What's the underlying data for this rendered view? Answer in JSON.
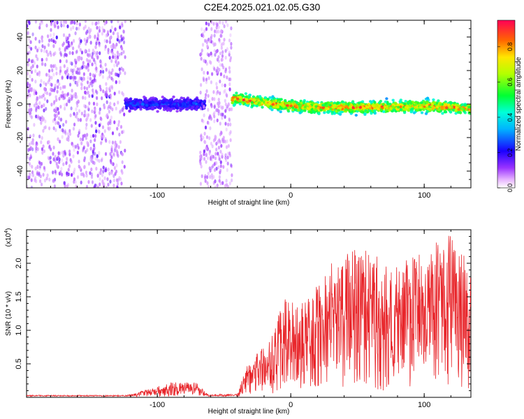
{
  "title": "C2E4.2025.021.02.05.G30",
  "chart_data": [
    {
      "type": "heatmap",
      "xlabel": "Height of straight line (km)",
      "ylabel": "Frequency (Hz)",
      "xlim": [
        -198,
        135
      ],
      "ylim": [
        -50,
        50
      ],
      "x_ticks": [
        -100,
        0,
        100
      ],
      "x_tick_labels": [
        "-100",
        "0",
        "100"
      ],
      "y_ticks": [
        -40,
        -20,
        0,
        20,
        40
      ],
      "y_tick_labels": [
        "-40",
        "-20",
        "0",
        "20",
        "40"
      ],
      "colorbar": {
        "label": "Normalized spectral amplitude",
        "range": [
          0,
          0.95
        ],
        "ticks": [
          0.0,
          0.2,
          0.4,
          0.6,
          0.8
        ],
        "tick_labels": [
          "0.0",
          "0.2",
          "0.4",
          "0.6",
          "0.8"
        ],
        "colormap": "rainbow"
      },
      "regions": [
        {
          "x": [
            -198,
            -124
          ],
          "freq": [
            -50,
            50
          ],
          "amplitude": [
            0.05,
            0.15
          ],
          "pattern": "broadband noise"
        },
        {
          "x": [
            -124,
            -64
          ],
          "freq": [
            -5,
            5
          ],
          "amplitude": [
            0.1,
            0.3
          ],
          "pattern": "narrow band near 0 Hz"
        },
        {
          "x": [
            -68,
            -44
          ],
          "freq": [
            -50,
            50
          ],
          "amplitude": [
            0.05,
            0.12
          ],
          "pattern": "broadband noise"
        },
        {
          "x": [
            -44,
            135
          ],
          "freq": [
            -5,
            5
          ],
          "amplitude": [
            0.3,
            0.95
          ],
          "pattern": "strong narrow band near 0 Hz"
        }
      ],
      "ridge": [
        {
          "x": -40,
          "freq": 3
        },
        {
          "x": -30,
          "freq": 2
        },
        {
          "x": -20,
          "freq": 1
        },
        {
          "x": 0,
          "freq": -1
        },
        {
          "x": 20,
          "freq": -2
        },
        {
          "x": 60,
          "freq": -2
        },
        {
          "x": 100,
          "freq": -1
        },
        {
          "x": 120,
          "freq": -2
        },
        {
          "x": 135,
          "freq": -3
        }
      ]
    },
    {
      "type": "line",
      "xlabel": "Height of straight line (km)",
      "ylabel": "SNR (10 * v/v)",
      "y_multiplier": "(x10",
      "y_multiplier_exp": "4",
      "y_multiplier_close": ")",
      "xlim": [
        -198,
        135
      ],
      "ylim": [
        0,
        25000
      ],
      "x_ticks": [
        -100,
        0,
        100
      ],
      "x_tick_labels": [
        "-100",
        "0",
        "100"
      ],
      "y_ticks": [
        5000,
        10000,
        15000,
        20000
      ],
      "y_tick_labels": [
        "0.5",
        "1.0",
        "1.5",
        "2.0"
      ],
      "color": "#e8252a",
      "series": [
        {
          "envelope": [
            {
              "x": -198,
              "y": 300
            },
            {
              "x": -124,
              "y": 300
            },
            {
              "x": -100,
              "y": 1600
            },
            {
              "x": -90,
              "y": 2300
            },
            {
              "x": -70,
              "y": 2200
            },
            {
              "x": -62,
              "y": 500
            },
            {
              "x": -40,
              "y": 600
            },
            {
              "x": -30,
              "y": 6500
            },
            {
              "x": -15,
              "y": 8500
            },
            {
              "x": -5,
              "y": 15000
            },
            {
              "x": 10,
              "y": 14000
            },
            {
              "x": 30,
              "y": 20000
            },
            {
              "x": 50,
              "y": 22500
            },
            {
              "x": 80,
              "y": 19500
            },
            {
              "x": 100,
              "y": 22500
            },
            {
              "x": 120,
              "y": 24500
            },
            {
              "x": 135,
              "y": 20000
            }
          ]
        }
      ]
    }
  ]
}
